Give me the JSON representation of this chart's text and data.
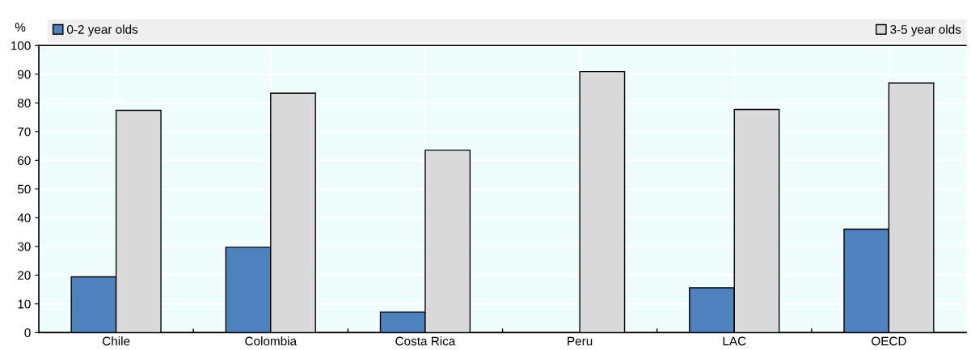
{
  "chart_data": {
    "type": "bar",
    "ylabel": "%",
    "categories": [
      "Chile",
      "Colombia",
      "Costa Rica",
      "Peru",
      "LAC",
      "OECD"
    ],
    "series": [
      {
        "name": "0-2 year olds",
        "color": "#4f81bd",
        "values": [
          19.4,
          29.7,
          7.1,
          null,
          15.6,
          36.0
        ]
      },
      {
        "name": "3-5 year olds",
        "color": "#dadada",
        "values": [
          77.4,
          83.4,
          63.5,
          90.9,
          77.7,
          86.9
        ]
      }
    ],
    "ylim": [
      0,
      100
    ],
    "yticks": [
      0,
      10,
      20,
      30,
      40,
      50,
      60,
      70,
      80,
      90,
      100
    ],
    "grid": true,
    "legend": "top"
  }
}
